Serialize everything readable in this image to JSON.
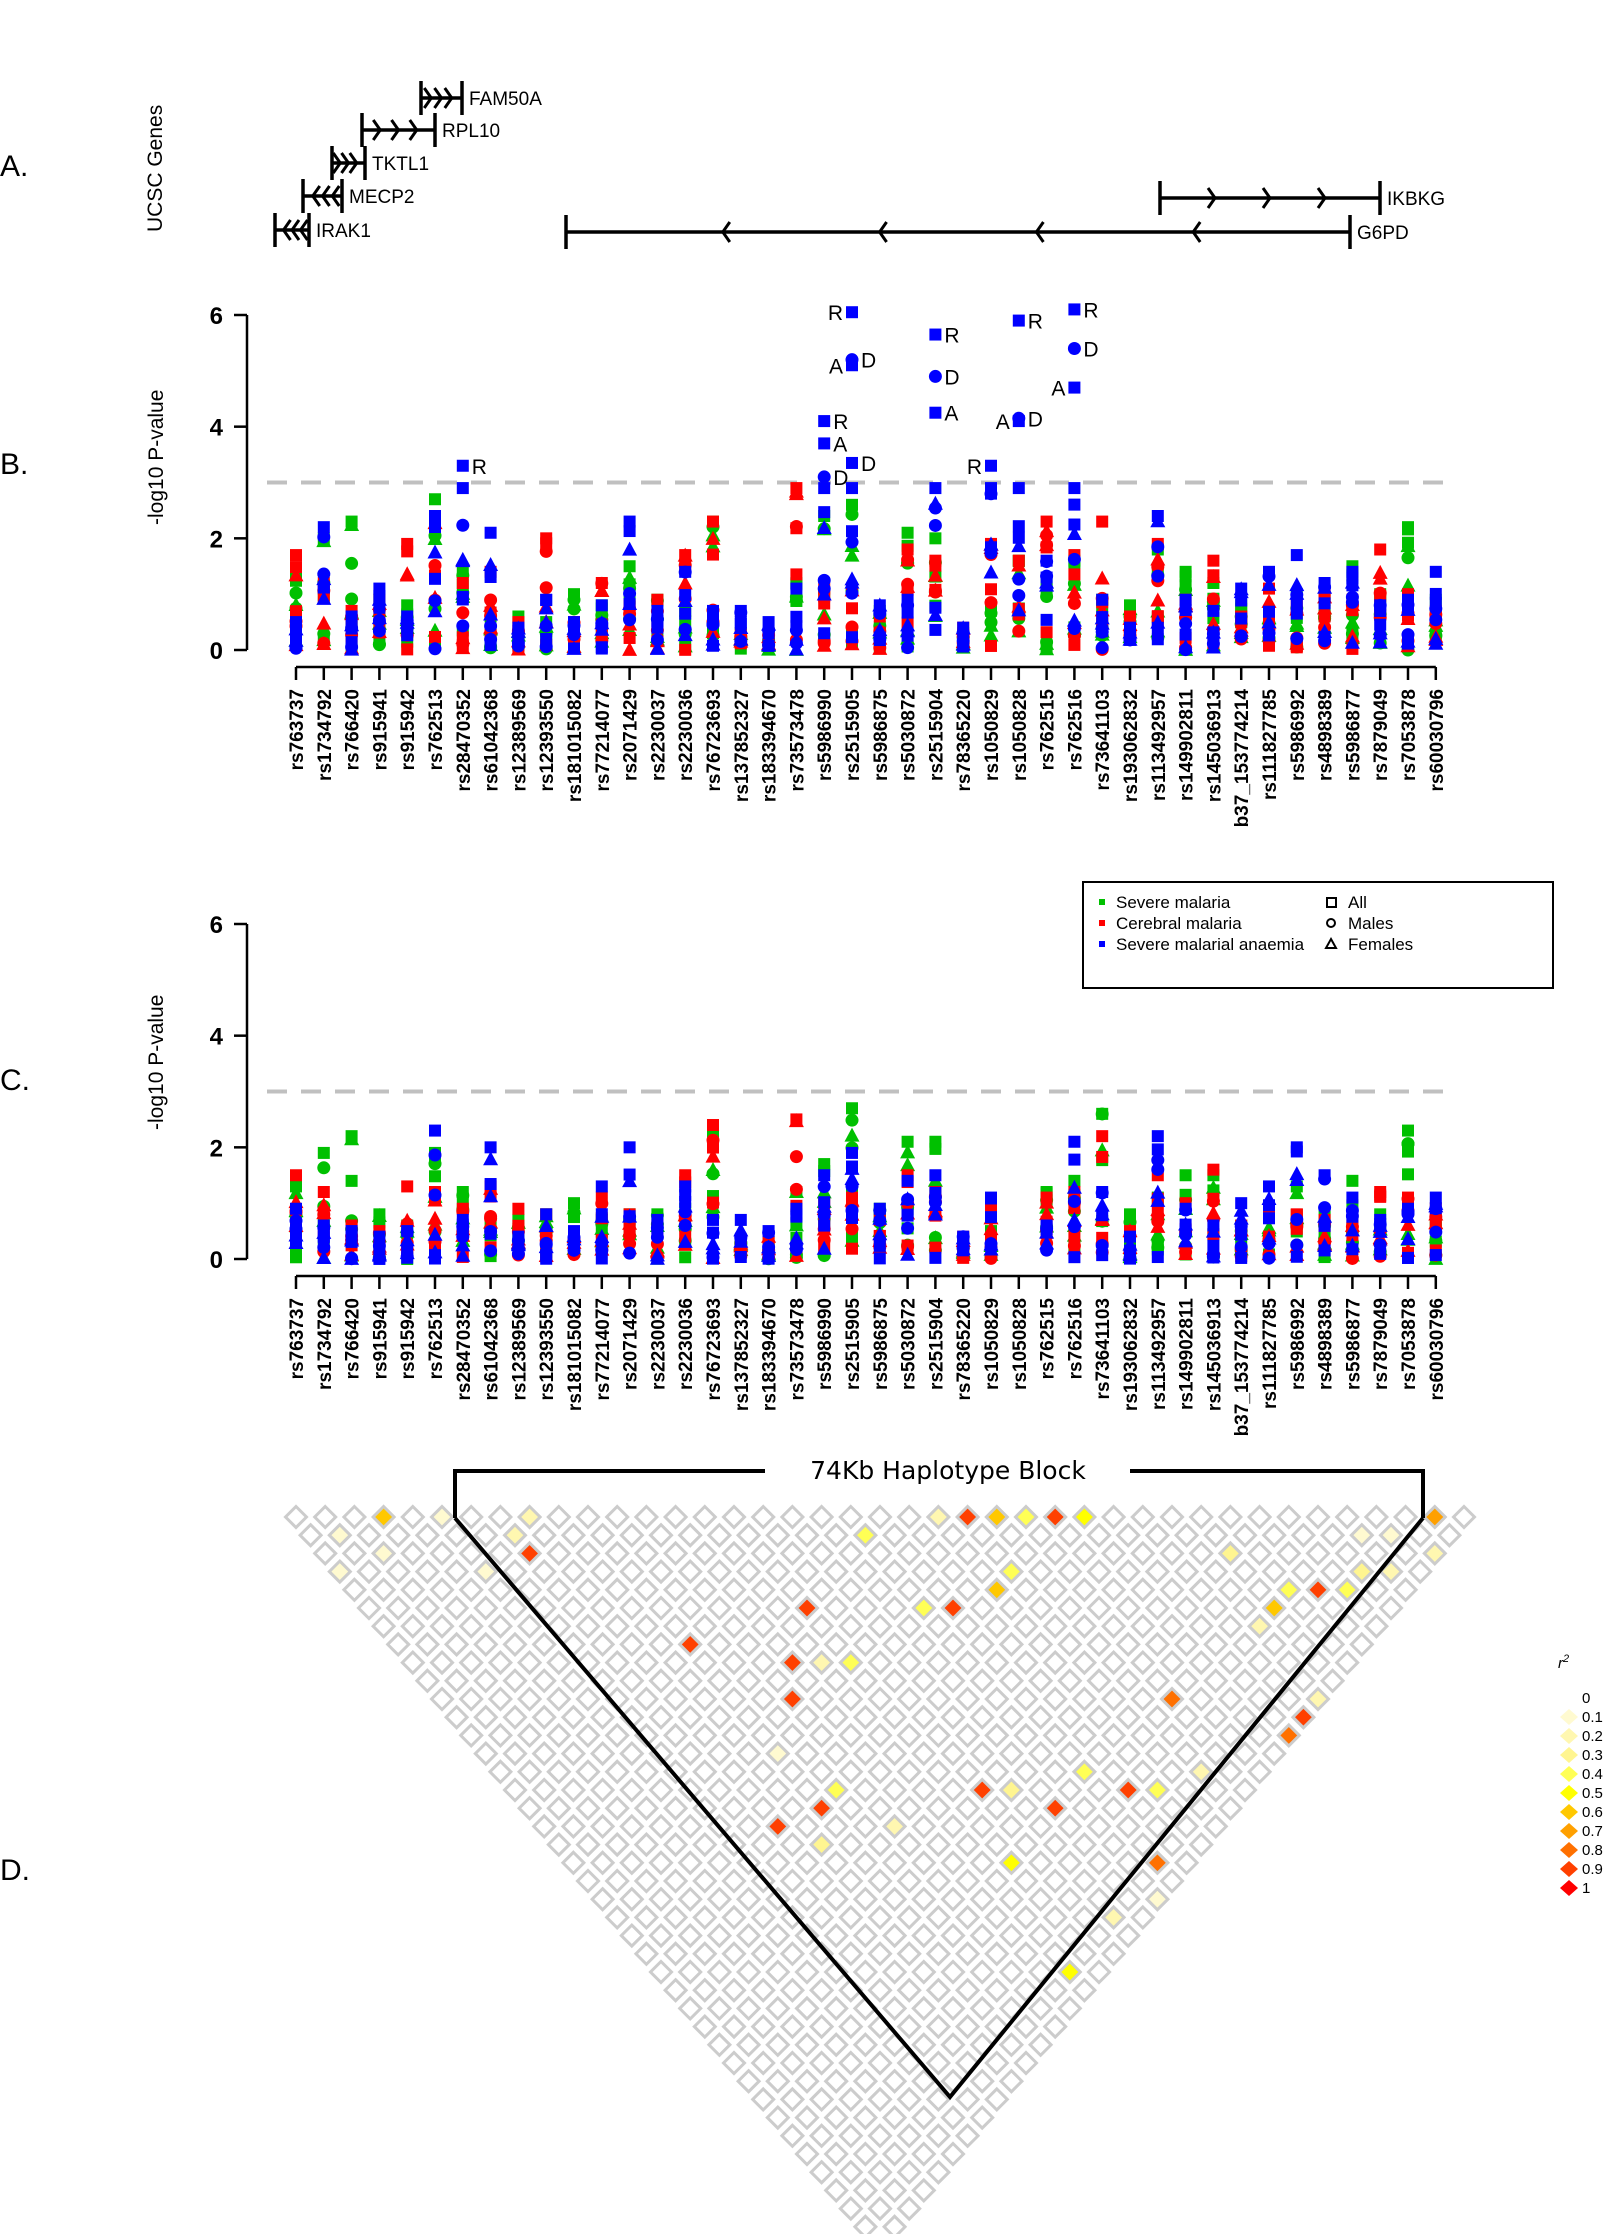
{
  "panel_labels": {
    "a": "A.",
    "b": "B.",
    "c": "C.",
    "d": "D."
  },
  "genes_track": {
    "ylabel": "UCSC Genes",
    "genes": [
      {
        "name": "FAM50A",
        "strand": "+"
      },
      {
        "name": "RPL10",
        "strand": "+"
      },
      {
        "name": "TKTL1",
        "strand": "+"
      },
      {
        "name": "MECP2",
        "strand": "-"
      },
      {
        "name": "IRAK1",
        "strand": "-"
      },
      {
        "name": "IKBKG",
        "strand": "+"
      },
      {
        "name": "G6PD",
        "strand": "-"
      }
    ]
  },
  "chart_data": [
    {
      "type": "scatter",
      "id": "panel-b",
      "title": "",
      "xlabel": "",
      "ylabel": "-log10 P-value",
      "ylim": [
        0,
        6
      ],
      "yticks": [
        "0",
        "2",
        "4",
        "6"
      ],
      "threshold": 3,
      "categories": [
        "rs763737",
        "rs1734792",
        "rs766420",
        "rs915941",
        "rs915942",
        "rs762513",
        "rs28470352",
        "rs61042368",
        "rs12389569",
        "rs12393550",
        "rs181015082",
        "rs77214077",
        "rs2071429",
        "rs2230037",
        "rs2230036",
        "rs76723693",
        "rs137852327",
        "rs183394670",
        "rs73573478",
        "rs5986990",
        "rs2515905",
        "rs5986875",
        "rs5030872",
        "rs2515904",
        "rs78365220",
        "rs1050829",
        "rs1050828",
        "rs762515",
        "rs762516",
        "rs73641103",
        "rs193062832",
        "rs113492957",
        "rs149902811",
        "rs145036913",
        "b37_153774214",
        "rs111827785",
        "rs5986992",
        "rs4898389",
        "rs5986877",
        "rs7879049",
        "rs7053878",
        "rs60030796"
      ],
      "series_colors": {
        "Severe malaria": "#00c000",
        "Cerebral malaria": "#ff0000",
        "Severe malarial anaemia": "#0000ff"
      },
      "max_per_snp": {
        "Severe malaria": [
          1.4,
          2.0,
          2.3,
          0.9,
          0.8,
          2.7,
          1.4,
          0.6,
          0.6,
          0.5,
          1.0,
          0.8,
          1.5,
          0.9,
          0.7,
          2.3,
          0.3,
          0.3,
          1.2,
          2.4,
          2.6,
          0.7,
          2.1,
          2.0,
          0.3,
          0.8,
          1.6,
          1.2,
          1.6,
          0.9,
          0.8,
          1.8,
          1.4,
          1.2,
          0.8,
          0.6,
          1.0,
          0.9,
          1.5,
          1.0,
          2.2,
          0.9
        ],
        "Cerebral malaria": [
          1.7,
          1.2,
          0.7,
          0.9,
          1.9,
          2.3,
          1.2,
          1.4,
          0.5,
          2.0,
          0.5,
          1.2,
          0.8,
          0.9,
          1.7,
          2.3,
          0.3,
          0.3,
          2.9,
          1.1,
          1.1,
          0.6,
          1.8,
          1.6,
          0.4,
          1.9,
          1.6,
          2.3,
          1.7,
          2.3,
          0.6,
          1.9,
          0.9,
          1.6,
          0.6,
          1.1,
          0.8,
          1.0,
          0.9,
          1.8,
          1.0,
          0.7
        ],
        "Severe malarial anaemia": [
          0.5,
          2.2,
          0.6,
          1.1,
          0.6,
          2.4,
          3.3,
          2.1,
          0.4,
          0.9,
          0.5,
          0.8,
          2.3,
          0.7,
          1.4,
          0.7,
          0.7,
          0.5,
          1.1,
          4.1,
          6.1,
          0.8,
          0.9,
          5.7,
          0.4,
          3.3,
          5.9,
          1.6,
          6.1,
          0.9,
          0.4,
          2.4,
          0.9,
          0.7,
          1.1,
          1.4,
          1.7,
          1.2,
          1.4,
          0.8,
          0.9,
          1.4
        ]
      },
      "annotated_points": [
        {
          "snp": "rs28470352",
          "series": "Severe malarial anaemia",
          "shape": "square",
          "value": 3.3,
          "label": "R"
        },
        {
          "snp": "rs5986990",
          "series": "Severe malarial anaemia",
          "shape": "square",
          "value": 4.1,
          "label": "R"
        },
        {
          "snp": "rs5986990",
          "series": "Severe malarial anaemia",
          "shape": "square",
          "value": 3.7,
          "label": "A"
        },
        {
          "snp": "rs5986990",
          "series": "Severe malarial anaemia",
          "shape": "circle",
          "value": 3.1,
          "label": "D"
        },
        {
          "snp": "rs2515905",
          "series": "Severe malarial anaemia",
          "shape": "square",
          "value": 6.05,
          "label": "R"
        },
        {
          "snp": "rs2515905",
          "series": "Severe malarial anaemia",
          "shape": "circle",
          "value": 5.2,
          "label": "D"
        },
        {
          "snp": "rs2515905",
          "series": "Severe malarial anaemia",
          "shape": "square",
          "value": 5.1,
          "label": "A"
        },
        {
          "snp": "rs2515905",
          "series": "Severe malarial anaemia",
          "shape": "square",
          "value": 3.35,
          "label": "D"
        },
        {
          "snp": "rs2515904",
          "series": "Severe malarial anaemia",
          "shape": "square",
          "value": 5.65,
          "label": "R"
        },
        {
          "snp": "rs2515904",
          "series": "Severe malarial anaemia",
          "shape": "circle",
          "value": 4.9,
          "label": "D"
        },
        {
          "snp": "rs2515904",
          "series": "Severe malarial anaemia",
          "shape": "square",
          "value": 4.25,
          "label": "A"
        },
        {
          "snp": "rs1050829",
          "series": "Severe malarial anaemia",
          "shape": "square",
          "value": 3.3,
          "label": "R"
        },
        {
          "snp": "rs1050828",
          "series": "Severe malarial anaemia",
          "shape": "square",
          "value": 5.9,
          "label": "R"
        },
        {
          "snp": "rs1050828",
          "series": "Severe malarial anaemia",
          "shape": "circle",
          "value": 4.15,
          "label": "D"
        },
        {
          "snp": "rs1050828",
          "series": "Severe malarial anaemia",
          "shape": "square",
          "value": 4.1,
          "label": "A"
        },
        {
          "snp": "rs762516",
          "series": "Severe malarial anaemia",
          "shape": "square",
          "value": 6.1,
          "label": "R"
        },
        {
          "snp": "rs762516",
          "series": "Severe malarial anaemia",
          "shape": "circle",
          "value": 5.4,
          "label": "D"
        },
        {
          "snp": "rs762516",
          "series": "Severe malarial anaemia",
          "shape": "square",
          "value": 4.7,
          "label": "A"
        }
      ]
    },
    {
      "type": "scatter",
      "id": "panel-c",
      "title": "",
      "xlabel": "",
      "ylabel": "-log10 P-value",
      "ylim": [
        0,
        6
      ],
      "yticks": [
        "0",
        "2",
        "4",
        "6"
      ],
      "threshold": 3,
      "categories": [
        "rs763737",
        "rs1734792",
        "rs766420",
        "rs915941",
        "rs915942",
        "rs762513",
        "rs28470352",
        "rs61042368",
        "rs12389569",
        "rs12393550",
        "rs181015082",
        "rs77214077",
        "rs2071429",
        "rs2230037",
        "rs2230036",
        "rs76723693",
        "rs137852327",
        "rs183394670",
        "rs73573478",
        "rs5986990",
        "rs2515905",
        "rs5986875",
        "rs5030872",
        "rs2515904",
        "rs78365220",
        "rs1050829",
        "rs1050828",
        "rs762515",
        "rs762516",
        "rs73641103",
        "rs193062832",
        "rs113492957",
        "rs149902811",
        "rs145036913",
        "b37_153774214",
        "rs111827785",
        "rs5986992",
        "rs4898389",
        "rs5986877",
        "rs7879049",
        "rs7053878",
        "rs60030796"
      ],
      "max_per_snp": {
        "Severe malaria": [
          1.3,
          1.9,
          2.2,
          0.8,
          0.6,
          1.9,
          1.2,
          0.6,
          0.7,
          0.8,
          1.0,
          0.7,
          0.8,
          0.8,
          0.9,
          2.3,
          0.3,
          0.3,
          1.2,
          1.7,
          2.7,
          0.9,
          2.1,
          2.1,
          0.3,
          0.5,
          0.0,
          1.2,
          1.4,
          2.6,
          0.8,
          1.1,
          1.5,
          1.5,
          0.6,
          0.8,
          1.3,
          0.8,
          1.4,
          0.8,
          2.3,
          0.6
        ],
        "Cerebral malaria": [
          1.5,
          1.2,
          0.6,
          0.5,
          1.3,
          1.2,
          0.9,
          1.3,
          0.9,
          0.8,
          0.4,
          1.1,
          0.8,
          0.6,
          1.5,
          2.4,
          0.3,
          0.4,
          2.5,
          1.0,
          1.1,
          0.7,
          1.5,
          1.2,
          0.4,
          0.9,
          0.0,
          1.1,
          1.2,
          2.2,
          0.5,
          1.5,
          1.0,
          1.6,
          0.6,
          0.8,
          0.8,
          0.7,
          0.6,
          1.2,
          1.1,
          0.9
        ],
        "Severe malarial anaemia": [
          0.9,
          0.6,
          0.5,
          0.4,
          0.5,
          2.3,
          0.7,
          2.0,
          0.4,
          0.8,
          0.5,
          1.3,
          2.0,
          0.7,
          1.3,
          0.7,
          0.7,
          0.5,
          0.9,
          1.5,
          1.9,
          0.9,
          1.4,
          1.5,
          0.4,
          1.1,
          0.0,
          0.6,
          2.1,
          1.2,
          0.4,
          2.2,
          0.9,
          0.6,
          1.0,
          1.3,
          2.0,
          1.5,
          1.1,
          0.7,
          0.9,
          1.1
        ]
      }
    },
    {
      "type": "heatmap",
      "id": "panel-d",
      "title": "74Kb Haplotype Block",
      "legend_title": "r2",
      "legend_levels": [
        "0",
        "0.1",
        "0.2",
        "0.3",
        "0.4",
        "0.5",
        "0.6",
        "0.7",
        "0.8",
        "0.9",
        "1"
      ],
      "legend_colors": [
        "#ffffff",
        "#fffad0",
        "#fff7b0",
        "#fff590",
        "#ffff55",
        "#ffff00",
        "#ffc800",
        "#ffa000",
        "#ff7000",
        "#ff4000",
        "#ff0000"
      ],
      "n_snps": 42,
      "highlighted_cells": [
        {
          "i": 0,
          "j": 4,
          "r2": 0.1
        },
        {
          "i": 0,
          "j": 4,
          "r2": 0.1
        },
        {
          "i": 3,
          "j": 4,
          "r2": 0.6
        },
        {
          "i": 5,
          "j": 6,
          "r2": 0.1
        },
        {
          "i": 8,
          "j": 9,
          "r2": 0.2
        },
        {
          "i": 1,
          "j": 3,
          "r2": 0.1
        },
        {
          "i": 2,
          "j": 5,
          "r2": 0.1
        },
        {
          "i": 7,
          "j": 9,
          "r2": 0.2
        },
        {
          "i": 7,
          "j": 10,
          "r2": 0.9
        },
        {
          "i": 5,
          "j": 9,
          "r2": 0.1
        },
        {
          "i": 10,
          "j": 18,
          "r2": 0.9
        },
        {
          "i": 19,
          "j": 21,
          "r2": 0.4
        },
        {
          "i": 22,
          "j": 23,
          "r2": 0.2
        },
        {
          "i": 23,
          "j": 24,
          "r2": 0.9
        },
        {
          "i": 24,
          "j": 25,
          "r2": 0.6
        },
        {
          "i": 25,
          "j": 26,
          "r2": 0.4
        },
        {
          "i": 26,
          "j": 27,
          "r2": 0.9
        },
        {
          "i": 27,
          "j": 28,
          "r2": 0.5
        },
        {
          "i": 19,
          "j": 25,
          "r2": 0.4
        },
        {
          "i": 20,
          "j": 26,
          "r2": 0.9
        },
        {
          "i": 22,
          "j": 27,
          "r2": 0.6
        },
        {
          "i": 23,
          "j": 27,
          "r2": 0.4
        },
        {
          "i": 15,
          "j": 21,
          "r2": 0.9
        },
        {
          "i": 13,
          "j": 22,
          "r2": 0.9
        },
        {
          "i": 10,
          "j": 24,
          "r2": 0.1
        },
        {
          "i": 39,
          "j": 40,
          "r2": 0.7
        },
        {
          "i": 37,
          "j": 39,
          "r2": 0.1
        },
        {
          "i": 38,
          "j": 41,
          "r2": 0.2
        },
        {
          "i": 36,
          "j": 40,
          "r2": 0.2
        },
        {
          "i": 12,
          "j": 23,
          "r2": 0.9
        },
        {
          "i": 14,
          "j": 23,
          "r2": 0.2
        },
        {
          "i": 15,
          "j": 24,
          "r2": 0.4
        },
        {
          "i": 10,
          "j": 27,
          "r2": 0.9
        },
        {
          "i": 11,
          "j": 27,
          "r2": 0.4
        },
        {
          "i": 8,
          "j": 26,
          "r2": 0.9
        },
        {
          "i": 9,
          "j": 28,
          "r2": 0.3
        },
        {
          "i": 12,
          "j": 30,
          "r2": 0.2
        },
        {
          "i": 16,
          "j": 32,
          "r2": 0.9
        },
        {
          "i": 17,
          "j": 33,
          "r2": 0.3
        },
        {
          "i": 18,
          "j": 35,
          "r2": 0.9
        },
        {
          "i": 20,
          "j": 35,
          "r2": 0.4
        },
        {
          "i": 15,
          "j": 35,
          "r2": 0.5
        },
        {
          "i": 21,
          "j": 37,
          "r2": 0.9
        },
        {
          "i": 22,
          "j": 38,
          "r2": 0.4
        },
        {
          "i": 24,
          "j": 39,
          "r2": 0.2
        },
        {
          "i": 25,
          "j": 36,
          "r2": 0.8
        },
        {
          "i": 30,
          "j": 37,
          "r2": 0.2
        },
        {
          "i": 31,
          "j": 37,
          "r2": 0.6
        },
        {
          "i": 32,
          "j": 37,
          "r2": 0.4
        },
        {
          "i": 33,
          "j": 38,
          "r2": 0.9
        },
        {
          "i": 34,
          "j": 39,
          "r2": 0.4
        },
        {
          "i": 31,
          "j": 34,
          "r2": 0.3
        },
        {
          "i": 35,
          "j": 39,
          "r2": 0.3
        },
        {
          "i": 36,
          "j": 38,
          "r2": 0.1
        },
        {
          "i": 20,
          "j": 40,
          "r2": 0.8
        },
        {
          "i": 28,
          "j": 41,
          "r2": 0.8
        },
        {
          "i": 29,
          "j": 41,
          "r2": 0.9
        },
        {
          "i": 14,
          "j": 40,
          "r2": 0.5
        },
        {
          "i": 17,
          "j": 40,
          "r2": 0.2
        },
        {
          "i": 19,
          "j": 41,
          "r2": 0.1
        },
        {
          "i": 30,
          "j": 41,
          "r2": 0.2
        }
      ]
    }
  ],
  "legend": {
    "series": [
      {
        "label": "Severe malaria",
        "color": "#00c000"
      },
      {
        "label": "Cerebral malaria",
        "color": "#ff0000"
      },
      {
        "label": "Severe malarial anaemia",
        "color": "#0000ff"
      }
    ],
    "shapes": [
      {
        "label": "All",
        "shape": "square"
      },
      {
        "label": "Males",
        "shape": "circle"
      },
      {
        "label": "Females",
        "shape": "triangle"
      }
    ]
  }
}
